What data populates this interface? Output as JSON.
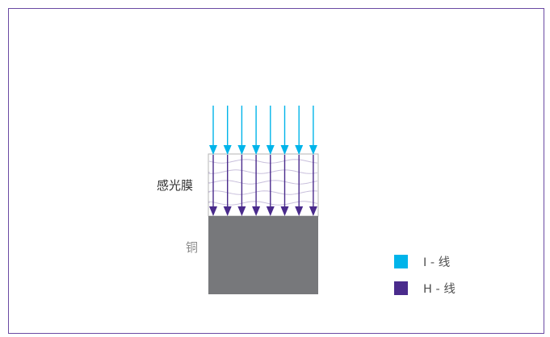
{
  "diagram": {
    "labels": {
      "film": "感光膜",
      "copper": "铜"
    },
    "legend": [
      {
        "text": "I - 线",
        "color": "#00b4ea"
      },
      {
        "text": "H - 线",
        "color": "#4a2b8c"
      }
    ],
    "arrow_count": 8,
    "colors": {
      "frame": "#6a4aa3",
      "i_line": "#00b4ea",
      "h_line": "#4a2b8c",
      "copper": "#77787b",
      "film_border": "#b5b5b5",
      "wave": "#c8bfdc"
    }
  }
}
